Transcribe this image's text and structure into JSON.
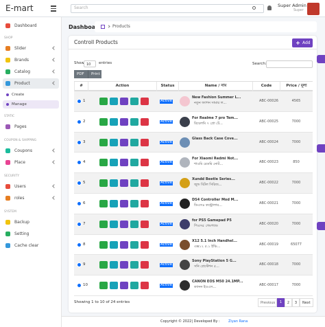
{
  "header": {
    "brand": "E-mart",
    "search_placeholder": "Search",
    "user_name": "Super Admin",
    "user_role": "Super"
  },
  "sidebar": {
    "top": "Dashboard",
    "groups": [
      {
        "title": "SHOP",
        "items": [
          "Slider",
          "Brands",
          "Catalog",
          "Product"
        ],
        "submenu": [
          "Create",
          "Manage"
        ]
      },
      {
        "title": "STATIC",
        "items": [
          "Pages"
        ]
      },
      {
        "title": "COUPON & SHIPPING",
        "items": [
          "Coupons",
          "Place"
        ]
      },
      {
        "title": "SECURITY",
        "items": [
          "Users",
          "roles"
        ]
      },
      {
        "title": "SYSTEM",
        "items": [
          "Backup",
          "Setting",
          "Cache clear"
        ]
      }
    ]
  },
  "breadcrumb": {
    "page": "Dashboard",
    "current": "Products"
  },
  "card": {
    "title": "Controll Products",
    "add_button": "Add",
    "show": "Show",
    "page_length": "10",
    "entries": "entries",
    "search_label": "Search:",
    "export_buttons": [
      "PDF",
      "Print"
    ]
  },
  "table": {
    "headers": [
      "#",
      "Action",
      "Status",
      "Name / নাম",
      "Code",
      "Price / মূল্য"
    ],
    "rows": [
      [
        "1",
        "Active",
        "New Fashion Summer L...",
        "নতুন ফ্যাশন সামার ল...",
        "ABC-00026",
        "4565"
      ],
      [
        "2",
        "Active",
        "For Realme 7 pro Tem...",
        "রিয়েলমি ৭ প্রো টে...",
        "ABC-00025",
        "7000"
      ],
      [
        "3",
        "Active",
        "Glass Back Case Cove...",
        "",
        "ABC-00024",
        "7000"
      ],
      [
        "4",
        "Active",
        "For Xiaomi Redmi Not...",
        "শাওমি রেডমি নোট...",
        "ABC-00023",
        "850"
      ],
      [
        "5",
        "Active",
        "Xundd Beetle Series...",
        "জুন্ড বিটল সিরিজ...",
        "ABC-00022",
        "7000"
      ],
      [
        "6",
        "Active",
        "DS4 Controller Mod M...",
        "ডিএস৪ কন্ট্রোলার...",
        "ABC-00021",
        "7000"
      ],
      [
        "7",
        "Active",
        "for PS5 Gamepad P5",
        "পিএস৫ গেমপ্যাড",
        "ABC-00020",
        "7000"
      ],
      [
        "8",
        "Active",
        "X12 5.1 Inch Handhel...",
        "এক্স১২ ৫.১ ইঞ্চি...",
        "ABC-00019",
        "65077"
      ],
      [
        "9",
        "Active",
        "Sony PlayStation 5 G...",
        "সনি প্লেস্টেশন ৫...",
        "ABC-00018",
        "7000"
      ],
      [
        "10",
        "Active",
        "CANON EOS M50 24.1MP...",
        "ক্যানন ইওএস...",
        "ABC-00017",
        "7000"
      ]
    ]
  },
  "pagination": {
    "info": "Showing 1 to 10 of 24 entries",
    "previous": "Previous",
    "pages": [
      "1",
      "2",
      "3"
    ],
    "next": "Next"
  },
  "footer": {
    "text": "Copyright © 2022| Developed By :",
    "author": "Ziyan Rana"
  }
}
